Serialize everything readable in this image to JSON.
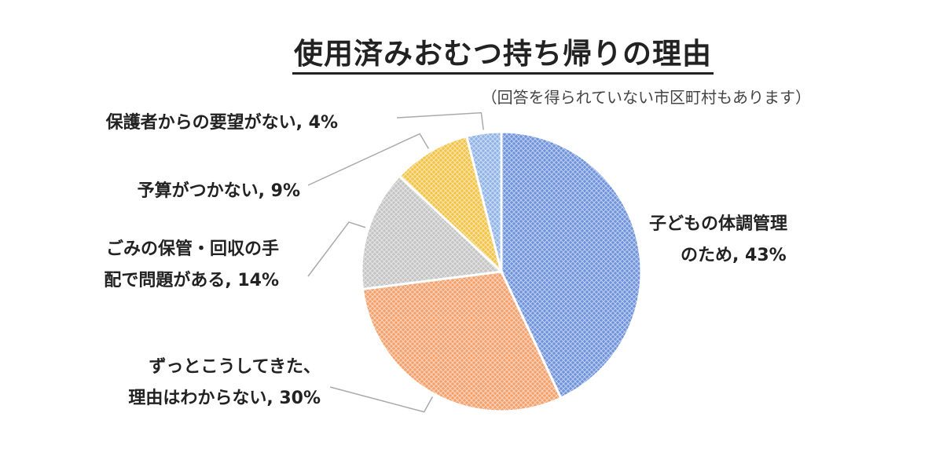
{
  "chart_data": {
    "type": "pie",
    "title": "使用済みおむつ持ち帰りの理由",
    "subtitle": "（回答を得られていない市区町村もあります）",
    "slices": [
      {
        "label_lines": [
          "子どもの体調管理",
          "のため, 43%"
        ],
        "value": 43,
        "color": "#6f93db"
      },
      {
        "label_lines": [
          "ずっとこうしてきた、",
          "理由はわからない, 30%"
        ],
        "value": 30,
        "color": "#f4a06b"
      },
      {
        "label_lines": [
          "ごみの保管・回収の手",
          "配で問題がある, 14%"
        ],
        "value": 14,
        "color": "#c4c4c4"
      },
      {
        "label_lines": [
          "予算がつかない, 9%"
        ],
        "value": 9,
        "color": "#f2c446"
      },
      {
        "label_lines": [
          "保護者からの要望がない, 4%"
        ],
        "value": 4,
        "color": "#8fb3e6"
      }
    ]
  }
}
